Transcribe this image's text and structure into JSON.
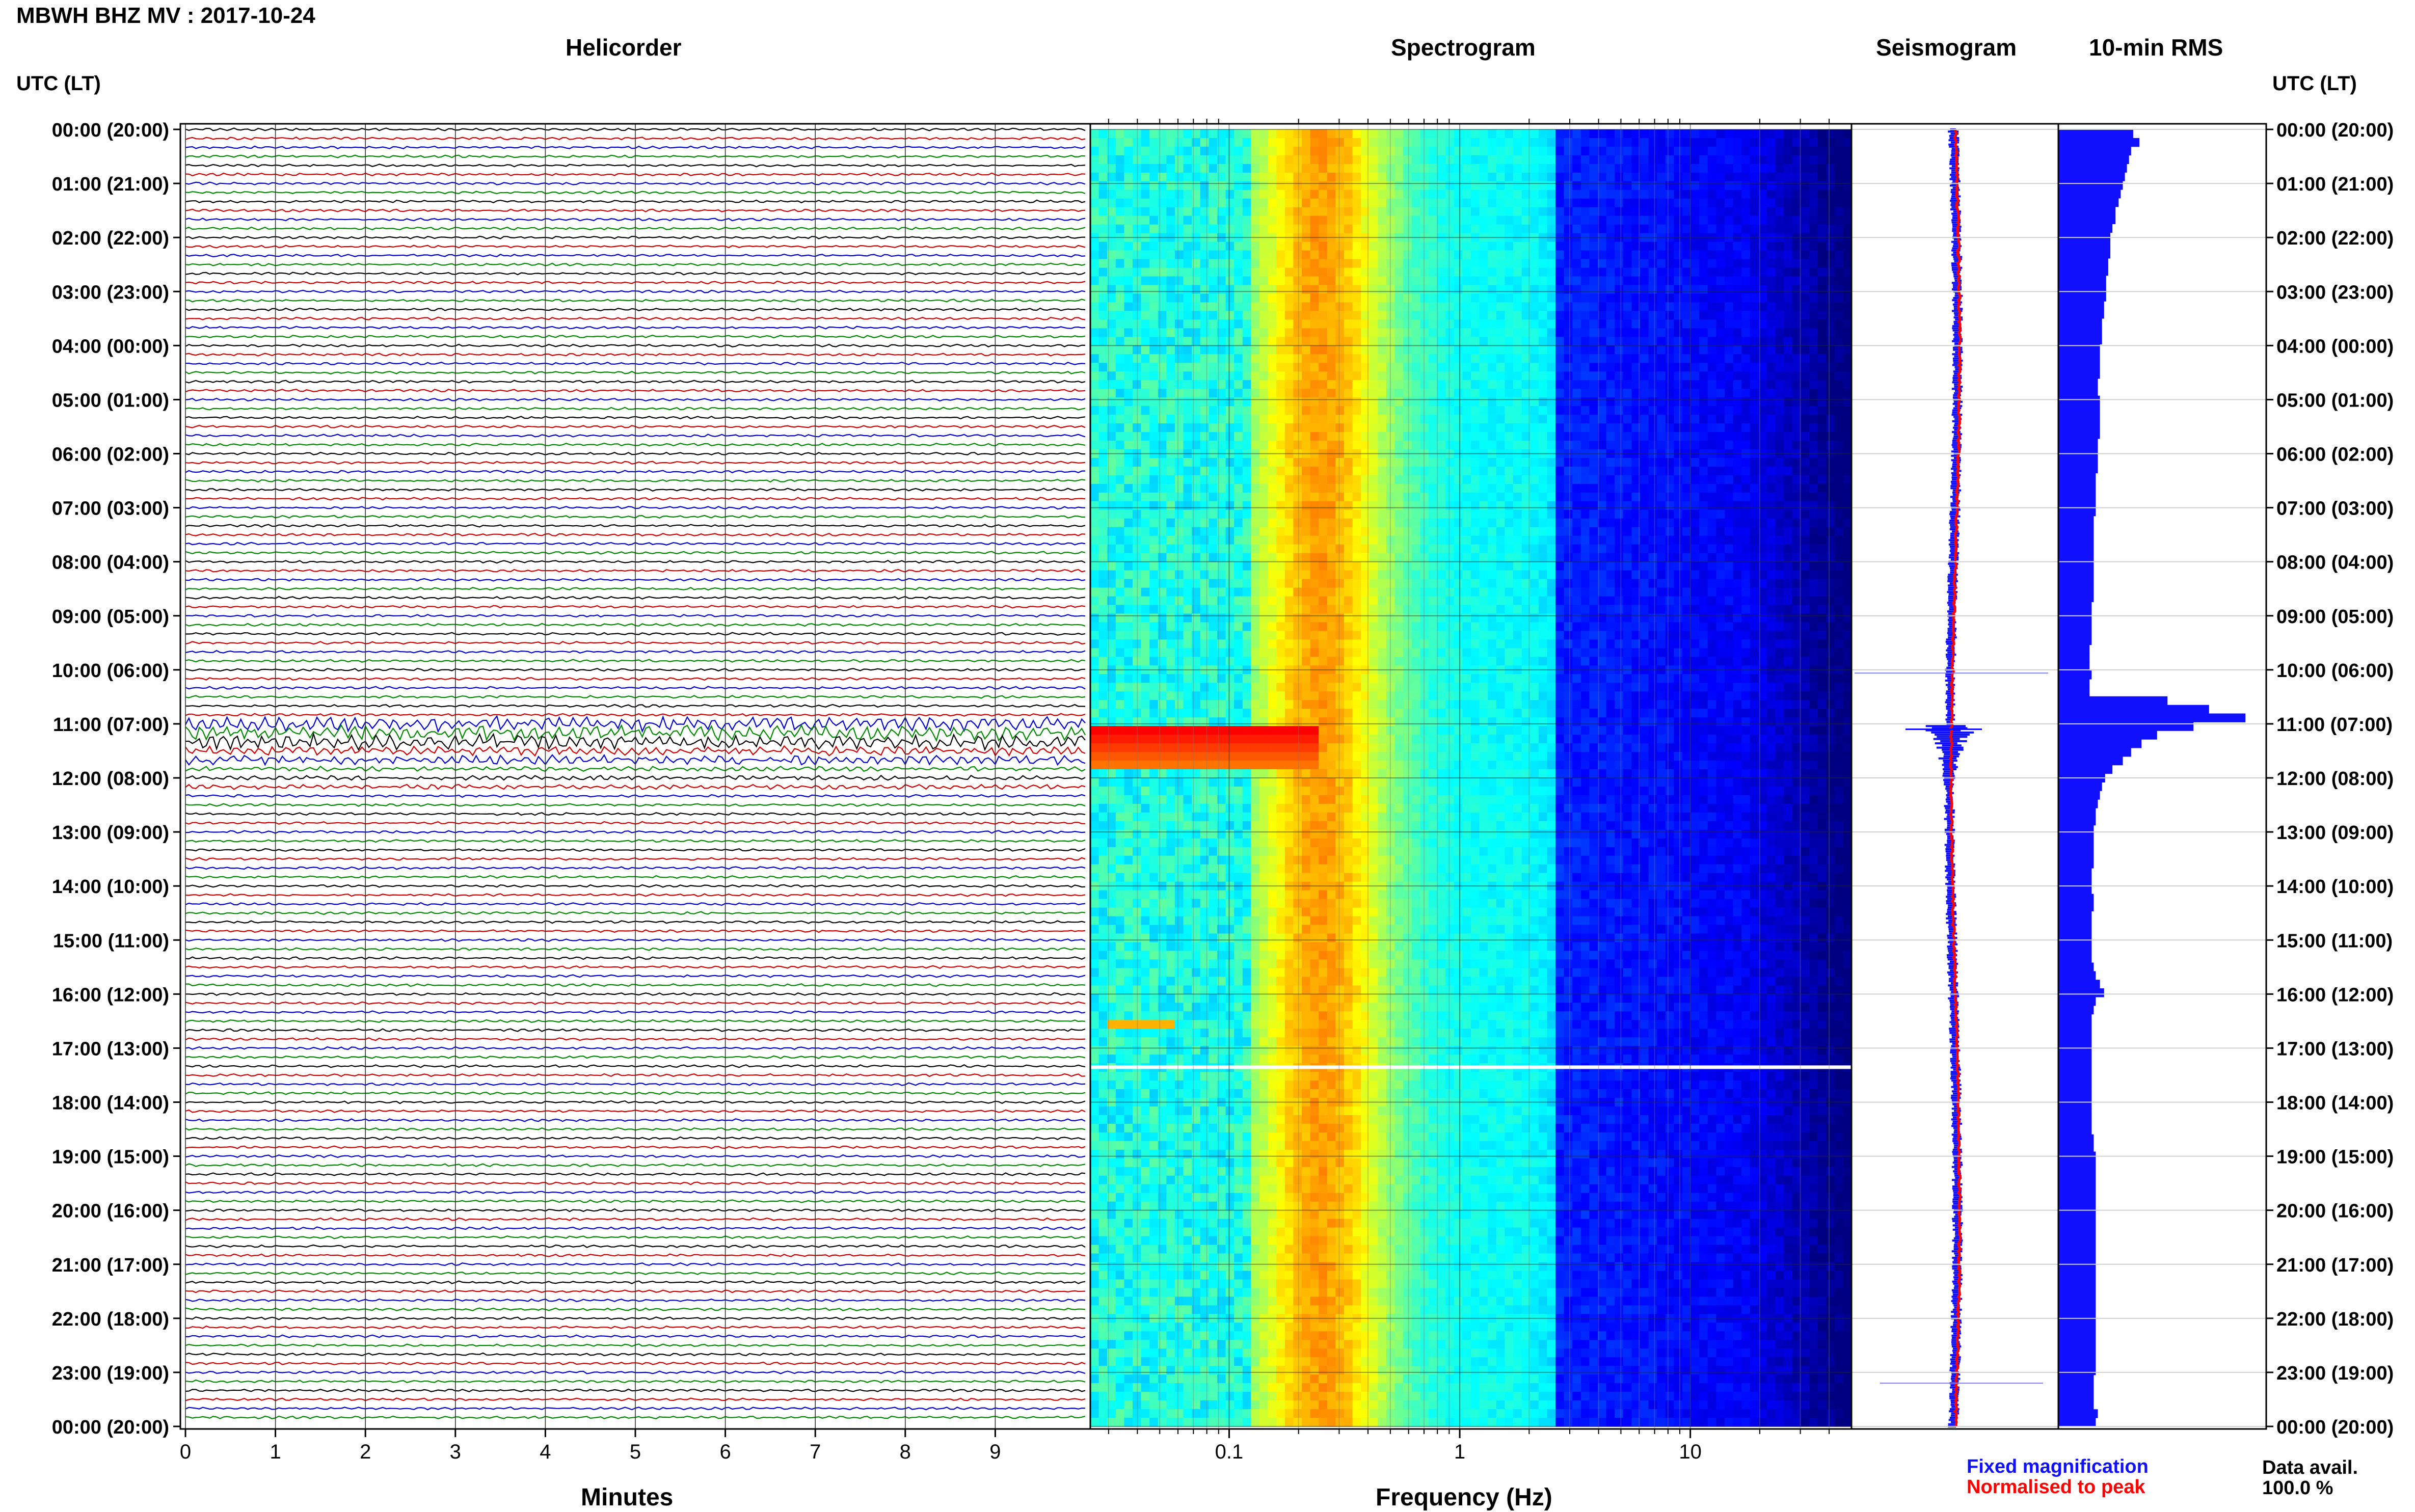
{
  "window_title": "MBWH BHZ MV : 2017-10-24",
  "panels": {
    "helicorder_title": "Helicorder",
    "spectrogram_title": "Spectrogram",
    "seismogram_title": "Seismogram",
    "rms_title": "10-min RMS"
  },
  "axes": {
    "left_label": "UTC (LT)",
    "right_label": "UTC (LT)",
    "helicorder_xlabel": "Minutes",
    "spectrogram_xlabel": "Frequency (Hz)"
  },
  "legend": {
    "fixed": "Fixed magnification",
    "normalised": "Normalised to peak",
    "fixed_color": "#1010ff",
    "normalised_color": "#ff0000"
  },
  "availability": {
    "label": "Data avail.",
    "value": "100.0 %"
  },
  "chart_data": [
    {
      "type": "line",
      "title": "Helicorder",
      "xlabel": "Minutes",
      "xlim": [
        0,
        10
      ],
      "x_ticks": [
        "0",
        "1",
        "2",
        "3",
        "4",
        "5",
        "6",
        "7",
        "8",
        "9"
      ],
      "rows_per_hour": 6,
      "trace_colors": [
        "#000000",
        "#cc0000",
        "#0000cc",
        "#008800"
      ],
      "hour_labels": [
        "00:00 (20:00)",
        "01:00 (21:00)",
        "02:00 (22:00)",
        "03:00 (23:00)",
        "04:00 (00:00)",
        "05:00 (01:00)",
        "06:00 (02:00)",
        "07:00 (03:00)",
        "08:00 (04:00)",
        "09:00 (05:00)",
        "10:00 (06:00)",
        "11:00 (07:00)",
        "12:00 (08:00)",
        "13:00 (09:00)",
        "14:00 (10:00)",
        "15:00 (11:00)",
        "16:00 (12:00)",
        "17:00 (13:00)",
        "18:00 (14:00)",
        "19:00 (15:00)",
        "20:00 (16:00)",
        "21:00 (17:00)",
        "22:00 (18:00)",
        "23:00 (19:00)",
        "00:00 (20:00)"
      ]
    },
    {
      "type": "heatmap",
      "title": "Spectrogram",
      "xlabel": "Frequency (Hz)",
      "x_scale": "log",
      "xlim": [
        0.025,
        50
      ],
      "x_ticks": [
        {
          "value": 0.1,
          "label": "0.1"
        },
        {
          "value": 1,
          "label": "1"
        },
        {
          "value": 10,
          "label": "10"
        }
      ],
      "peak_band_hz": [
        0.15,
        0.4
      ],
      "event_hours_utc": [
        11.1,
        11.6
      ]
    },
    {
      "type": "line",
      "title": "Seismogram",
      "series": [
        {
          "name": "Fixed magnification",
          "color": "#1010ff"
        },
        {
          "name": "Normalised to peak",
          "color": "#ff0000"
        }
      ]
    },
    {
      "type": "bar",
      "title": "10-min RMS",
      "orientation": "horizontal",
      "bin_minutes": 10,
      "values": [
        0.72,
        0.78,
        0.7,
        0.68,
        0.66,
        0.64,
        0.62,
        0.6,
        0.58,
        0.55,
        0.55,
        0.52,
        0.5,
        0.5,
        0.5,
        0.48,
        0.48,
        0.46,
        0.46,
        0.46,
        0.44,
        0.44,
        0.42,
        0.42,
        0.42,
        0.4,
        0.4,
        0.4,
        0.4,
        0.38,
        0.38,
        0.4,
        0.4,
        0.4,
        0.4,
        0.4,
        0.38,
        0.38,
        0.38,
        0.38,
        0.36,
        0.36,
        0.36,
        0.36,
        0.36,
        0.34,
        0.34,
        0.34,
        0.34,
        0.34,
        0.34,
        0.34,
        0.34,
        0.34,
        0.34,
        0.32,
        0.32,
        0.32,
        0.32,
        0.32,
        0.3,
        0.3,
        0.3,
        0.32,
        0.3,
        0.3,
        1.05,
        1.45,
        1.8,
        1.3,
        0.95,
        0.8,
        0.7,
        0.62,
        0.52,
        0.45,
        0.42,
        0.4,
        0.38,
        0.36,
        0.36,
        0.34,
        0.34,
        0.34,
        0.34,
        0.34,
        0.32,
        0.32,
        0.32,
        0.34,
        0.34,
        0.32,
        0.32,
        0.32,
        0.32,
        0.32,
        0.32,
        0.34,
        0.36,
        0.4,
        0.44,
        0.36,
        0.34,
        0.32,
        0.32,
        0.32,
        0.32,
        0.32,
        0.32,
        0.32,
        0.32,
        0.32,
        0.32,
        0.32,
        0.32,
        0.32,
        0.32,
        0.34,
        0.34,
        0.36,
        0.36,
        0.36,
        0.36,
        0.36,
        0.36,
        0.36,
        0.36,
        0.36,
        0.36,
        0.36,
        0.36,
        0.36,
        0.36,
        0.36,
        0.36,
        0.36,
        0.36,
        0.36,
        0.36,
        0.36,
        0.36,
        0.36,
        0.36,
        0.36,
        0.36,
        0.34,
        0.34,
        0.34,
        0.34,
        0.38,
        0.36
      ]
    }
  ]
}
